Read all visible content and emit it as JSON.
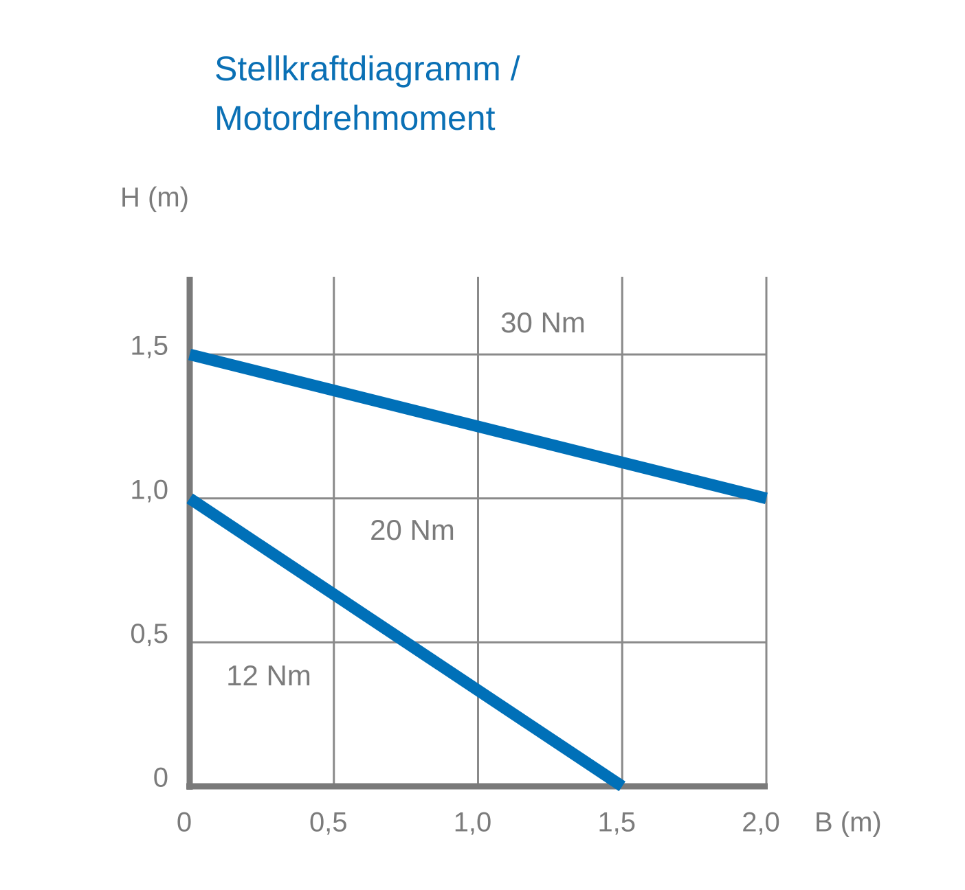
{
  "chart_data": {
    "type": "line",
    "title": [
      "Stellkraftdiagramm /",
      "Motordrehmoment"
    ],
    "x_label": "B (m)",
    "y_label": "H (m)",
    "xlim": [
      0,
      2.0
    ],
    "ylim": [
      0,
      1.77
    ],
    "xticks": [
      0,
      {
        "value": 0.5,
        "label": "0,5"
      },
      {
        "value": 1.0,
        "label": "1,0"
      },
      {
        "value": 1.5,
        "label": "1,5"
      },
      {
        "value": 2.0,
        "label": "2,0"
      }
    ],
    "yticks": [
      0,
      {
        "value": 0.5,
        "label": "0,5"
      },
      {
        "value": 1.0,
        "label": "1,0"
      },
      {
        "value": 1.5,
        "label": "1,5"
      }
    ],
    "grid": true,
    "series": [
      {
        "color": "#0070b8",
        "x": [
          0,
          2.0
        ],
        "values": [
          1.5,
          1.0
        ]
      },
      {
        "color": "#0070b8",
        "x": [
          0,
          1.5
        ],
        "values": [
          1.0,
          0
        ]
      }
    ],
    "annotations": [
      "30 Nm",
      "20 Nm",
      "12 Nm"
    ]
  }
}
